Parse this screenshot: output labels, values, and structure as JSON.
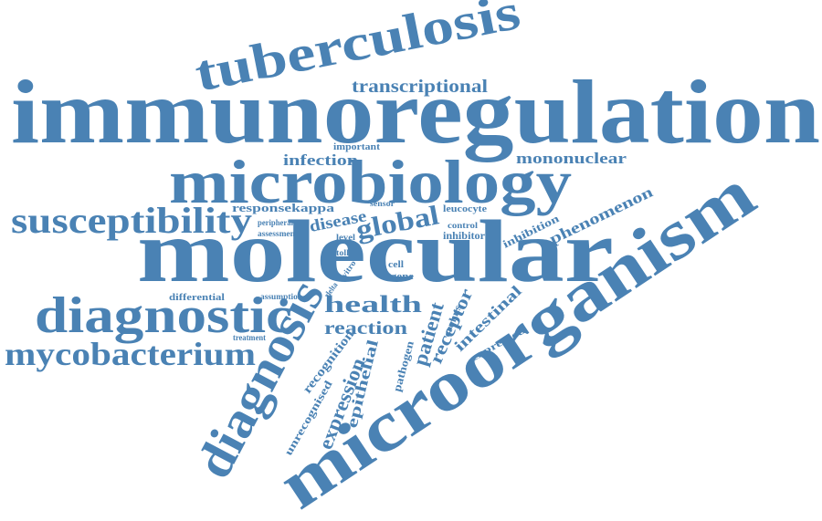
{
  "words": [
    "immunoregulation",
    "molecular",
    "microorganism",
    "tuberculosis",
    "microbiology",
    "diagnostic",
    "diagnosis",
    "susceptibility",
    "mycobacterium",
    "transcriptional",
    "infection",
    "important",
    "mononuclear",
    "responsekappa",
    "sensor",
    "leucocyte",
    "global",
    "disease",
    "peripheral",
    "assessment",
    "level",
    "control",
    "inhibitor",
    "phenomenon",
    "inhibition",
    "toll",
    "health",
    "reaction",
    "differential",
    "assumption",
    "treatment",
    "cell",
    "gene",
    "vitro",
    "delta",
    "patient",
    "receptor",
    "crohns",
    "intestinal",
    "expressed",
    "recognition",
    "unrecognised",
    "expression",
    "epithelial",
    "pathogen"
  ]
}
